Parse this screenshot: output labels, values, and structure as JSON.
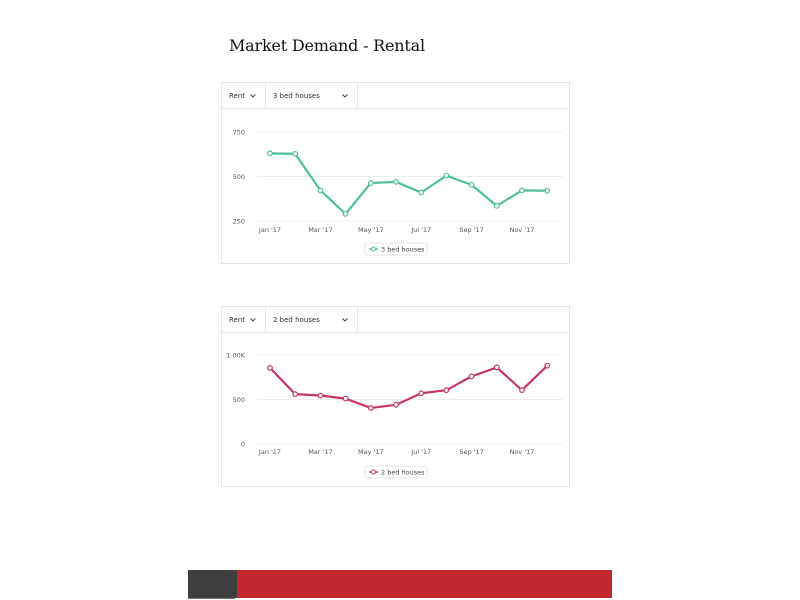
{
  "page": {
    "title": "Market Demand - Rental"
  },
  "colors": {
    "teal": "#4dbf9f",
    "crimson": "#c8365f",
    "footer_dark": "#3f3f3f",
    "footer_red": "#c0282f"
  },
  "cards": [
    {
      "metric_label": "Rent",
      "type_label": "3 bed houses",
      "chevron_icon": "chevron-down-icon"
    },
    {
      "metric_label": "Rent",
      "type_label": "2 bed houses",
      "chevron_icon": "chevron-down-icon"
    }
  ],
  "chart_data": [
    {
      "type": "line",
      "title": "",
      "x": [
        "Jan '17",
        "Feb '17",
        "Mar '17",
        "Apr '17",
        "May '17",
        "Jun '17",
        "Jul '17",
        "Aug '17",
        "Sep '17",
        "Oct '17",
        "Nov '17",
        "Dec '17"
      ],
      "x_tick_labels": [
        "Jan '17",
        "Mar '17",
        "May '17",
        "Jul '17",
        "Sep '17",
        "Nov '17"
      ],
      "y_tick_labels": [
        "750",
        "500",
        "250"
      ],
      "ylim": [
        250,
        750
      ],
      "grid": true,
      "legend": "bottom-center",
      "series": [
        {
          "name": "3 bed houses",
          "color": "#4dbf9f",
          "values": [
            630,
            627,
            422,
            290,
            463,
            470,
            410,
            505,
            453,
            335,
            422,
            420
          ]
        }
      ]
    },
    {
      "type": "line",
      "title": "",
      "x": [
        "Jan '17",
        "Feb '17",
        "Mar '17",
        "Apr '17",
        "May '17",
        "Jun '17",
        "Jul '17",
        "Aug '17",
        "Sep '17",
        "Oct '17",
        "Nov '17",
        "Dec '17"
      ],
      "x_tick_labels": [
        "Jan '17",
        "Mar '17",
        "May '17",
        "Jul '17",
        "Sep '17",
        "Nov '17"
      ],
      "y_tick_labels": [
        "1.00K",
        "500",
        "0"
      ],
      "ylim": [
        0,
        1000
      ],
      "grid": true,
      "legend": "bottom-center",
      "series": [
        {
          "name": "2 bed houses",
          "color": "#c8365f",
          "values": [
            855,
            560,
            545,
            510,
            405,
            440,
            570,
            605,
            760,
            860,
            605,
            880
          ]
        }
      ]
    }
  ]
}
